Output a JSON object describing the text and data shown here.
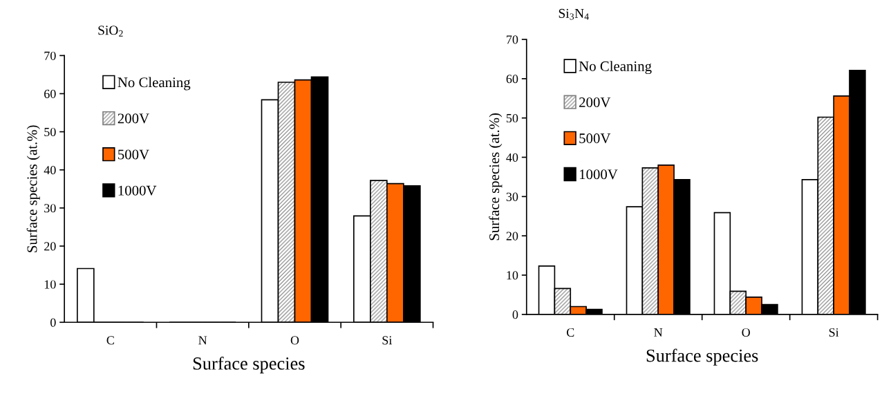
{
  "chart_data": [
    {
      "type": "bar",
      "title": "SiO$_{2}$",
      "xlabel": "Surface species",
      "ylabel": "Surface species (at.%)",
      "categories": [
        "C",
        "N",
        "O",
        "Si"
      ],
      "ylim": [
        0,
        70
      ],
      "yticks": [
        0,
        10,
        20,
        30,
        40,
        50,
        60,
        70
      ],
      "legend": "top left",
      "grid": false,
      "series": [
        {
          "name": "No Cleaning",
          "color": "#ffffff",
          "values": [
            14.1,
            0,
            58.4,
            27.9
          ]
        },
        {
          "name": "200V",
          "color": "#7f7f7f",
          "values": [
            0,
            0,
            63.0,
            37.2
          ]
        },
        {
          "name": "500V",
          "color": "#ff6600",
          "values": [
            0,
            0,
            63.6,
            36.4
          ]
        },
        {
          "name": "1000V",
          "color": "#000000",
          "values": [
            0,
            0,
            64.4,
            35.8
          ]
        }
      ]
    },
    {
      "type": "bar",
      "title": "Si$_{3}$N$_{4}$",
      "xlabel": "Surface species",
      "ylabel": "Surface species (at.%)",
      "categories": [
        "C",
        "N",
        "O",
        "Si"
      ],
      "ylim": [
        0,
        70
      ],
      "yticks": [
        0,
        10,
        20,
        30,
        40,
        50,
        60,
        70
      ],
      "legend": "top left",
      "grid": false,
      "series": [
        {
          "name": "No Cleaning",
          "color": "#ffffff",
          "values": [
            12.3,
            27.4,
            25.9,
            34.3
          ]
        },
        {
          "name": "200V",
          "color": "#7f7f7f",
          "values": [
            6.6,
            37.3,
            5.9,
            50.2
          ]
        },
        {
          "name": "500V",
          "color": "#ff6600",
          "values": [
            2.0,
            38.0,
            4.4,
            55.6
          ]
        },
        {
          "name": "1000V",
          "color": "#000000",
          "values": [
            1.3,
            34.3,
            2.5,
            62.1
          ]
        }
      ]
    }
  ]
}
